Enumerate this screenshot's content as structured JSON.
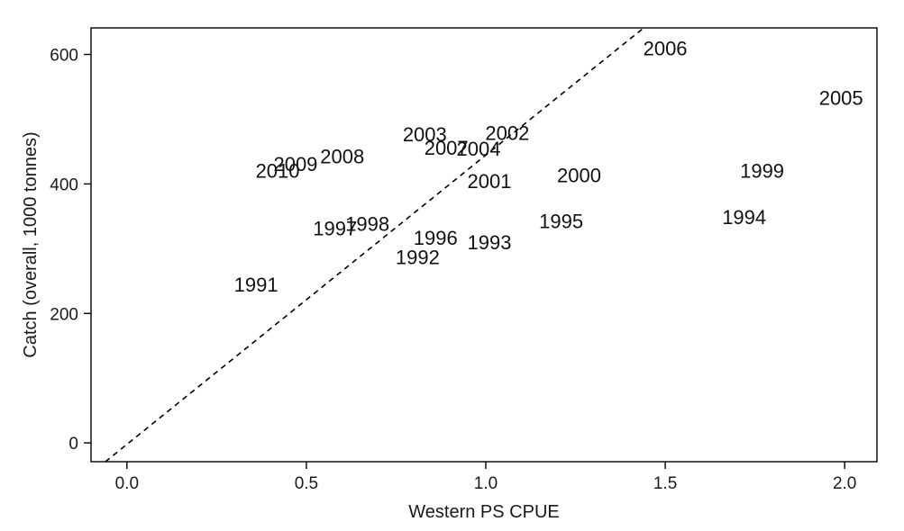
{
  "chart_data": {
    "type": "scatter",
    "xlabel": "Western PS CPUE",
    "ylabel": "Catch (overall, 1000 tonnes)",
    "xlim": [
      -0.1,
      2.09
    ],
    "ylim": [
      -29,
      641
    ],
    "xticks": [
      0.0,
      0.5,
      1.0,
      1.5,
      2.0
    ],
    "xtick_labels": [
      "0.0",
      "0.5",
      "1.0",
      "1.5",
      "2.0"
    ],
    "yticks": [
      0,
      200,
      400,
      600
    ],
    "ytick_labels": [
      "0",
      "200",
      "400",
      "600"
    ],
    "grid": false,
    "legend": "none",
    "marker": "year-text-labels",
    "points": [
      {
        "label": "1991",
        "x": 0.36,
        "y": 245
      },
      {
        "label": "1992",
        "x": 0.81,
        "y": 287
      },
      {
        "label": "1993",
        "x": 1.01,
        "y": 310
      },
      {
        "label": "1994",
        "x": 1.72,
        "y": 349
      },
      {
        "label": "1995",
        "x": 1.21,
        "y": 343
      },
      {
        "label": "1996",
        "x": 0.86,
        "y": 317
      },
      {
        "label": "1997",
        "x": 0.58,
        "y": 332
      },
      {
        "label": "1998",
        "x": 0.67,
        "y": 339
      },
      {
        "label": "1999",
        "x": 1.77,
        "y": 421
      },
      {
        "label": "2000",
        "x": 1.26,
        "y": 414
      },
      {
        "label": "2001",
        "x": 1.01,
        "y": 405
      },
      {
        "label": "2002",
        "x": 1.06,
        "y": 479
      },
      {
        "label": "2003",
        "x": 0.83,
        "y": 477
      },
      {
        "label": "2004",
        "x": 0.98,
        "y": 455
      },
      {
        "label": "2005",
        "x": 1.99,
        "y": 533
      },
      {
        "label": "2006",
        "x": 1.5,
        "y": 610
      },
      {
        "label": "2007",
        "x": 0.89,
        "y": 456
      },
      {
        "label": "2008",
        "x": 0.6,
        "y": 443
      },
      {
        "label": "2009",
        "x": 0.47,
        "y": 431
      },
      {
        "label": "2010",
        "x": 0.42,
        "y": 421
      }
    ],
    "reference_line": {
      "style": "dashed",
      "x": [
        -0.06,
        1.44
      ],
      "y": [
        -29,
        641
      ]
    }
  },
  "colors": {
    "background": "#ffffff",
    "axes": "#000000",
    "text": "#111111",
    "reference_line": "#000000"
  }
}
